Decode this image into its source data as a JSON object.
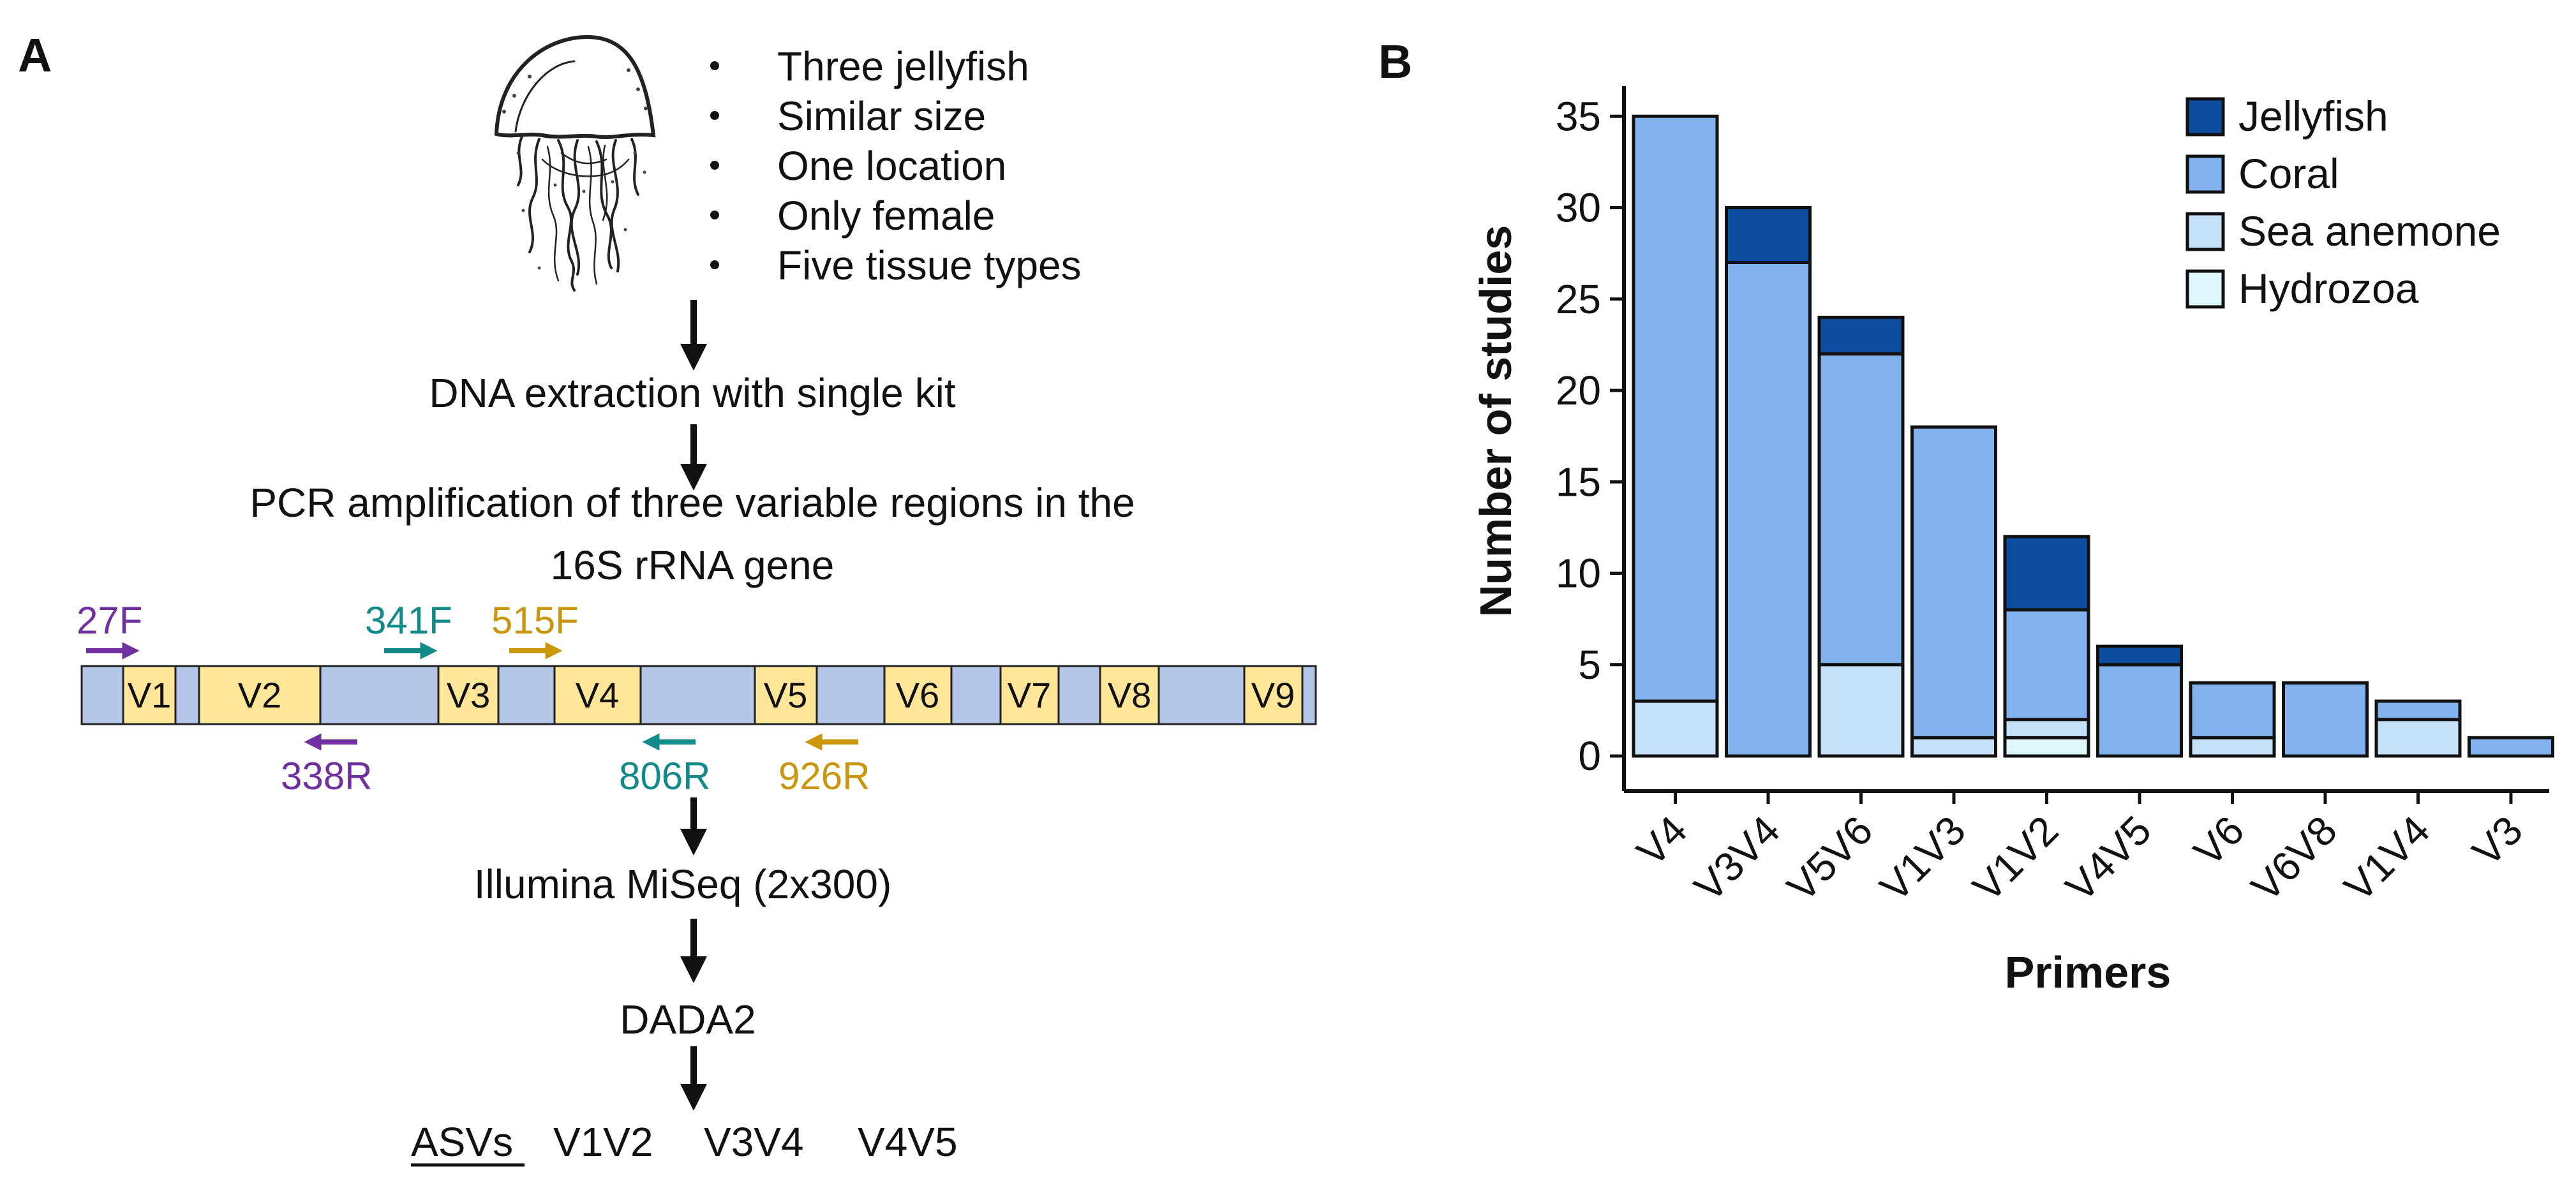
{
  "panel_a": {
    "letter": "A",
    "illustration": "jellyfish-drawing",
    "bullets": [
      "Three jellyfish",
      "Similar size",
      "One location",
      "Only female",
      "Five tissue types"
    ],
    "step_extraction": "DNA extraction with single kit",
    "step_pcr_line1": "PCR amplification of three variable regions in the",
    "step_pcr_line2": "16S rRNA gene",
    "gene_regions": [
      "V1",
      "V2",
      "V3",
      "V4",
      "V5",
      "V6",
      "V7",
      "V8",
      "V9"
    ],
    "primers_forward": [
      "27F",
      "341F",
      "515F"
    ],
    "primers_reverse": [
      "338R",
      "806R",
      "926R"
    ],
    "step_sequencing": "Illumina MiSeq (2x300)",
    "step_pipeline": "DADA2",
    "asv_label": "ASVs",
    "asv_regions": [
      "V1V2",
      "V3V4",
      "V4V5"
    ],
    "colors": {
      "gene_backbone": "#B4C6E7",
      "variable_region": "#FFE699",
      "primer_pair_1": "#7030A0",
      "primer_pair_2": "#138A8A",
      "primer_pair_3": "#C9960C",
      "arrow": "#111111"
    }
  },
  "panel_b": {
    "letter": "B",
    "chart_data": {
      "type": "bar",
      "stacked": true,
      "title": "",
      "xlabel": "Primers",
      "ylabel": "Number of studies",
      "ylim": [
        0,
        37
      ],
      "yticks": [
        0,
        5,
        10,
        15,
        20,
        25,
        30,
        35
      ],
      "categories": [
        "V4",
        "V3V4",
        "V5V6",
        "V1V3",
        "V1V2",
        "V4V5",
        "V6",
        "V6V8",
        "V1V4",
        "V3"
      ],
      "series": [
        {
          "name": "Hydrozoa",
          "color": "#DDF7FB",
          "values": [
            0,
            0,
            0,
            0,
            1,
            0,
            0,
            0,
            0,
            0
          ]
        },
        {
          "name": "Sea anemone",
          "color": "#C5E1F8",
          "values": [
            3,
            0,
            5,
            1,
            1,
            0,
            1,
            0,
            2,
            0
          ]
        },
        {
          "name": "Coral",
          "color": "#82B2EE",
          "values": [
            32,
            27,
            17,
            17,
            6,
            5,
            3,
            4,
            1,
            1
          ]
        },
        {
          "name": "Jellyfish",
          "color": "#0D4DA0",
          "values": [
            0,
            3,
            2,
            0,
            4,
            1,
            0,
            0,
            0,
            0
          ]
        }
      ],
      "legend_order": [
        "Jellyfish",
        "Coral",
        "Sea anemone",
        "Hydrozoa"
      ],
      "legend_position": "top-right",
      "grid": false
    }
  }
}
